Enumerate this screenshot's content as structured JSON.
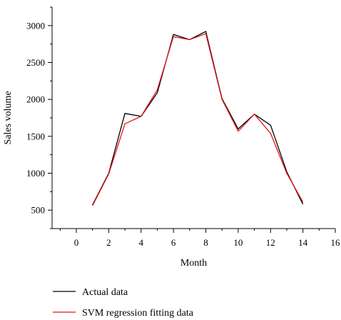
{
  "chart_data": {
    "type": "line",
    "title": "",
    "xlabel": "Month",
    "ylabel": "Sales volume",
    "xlim": [
      -1.5,
      16
    ],
    "ylim": [
      250,
      3250
    ],
    "xticks": [
      0,
      2,
      4,
      6,
      8,
      10,
      12,
      14,
      16
    ],
    "yticks": [
      500,
      1000,
      1500,
      2000,
      2500,
      3000
    ],
    "grid": false,
    "legend_position": "bottom",
    "x": [
      1,
      2,
      3,
      4,
      5,
      6,
      7,
      8,
      9,
      10,
      11,
      12,
      13,
      14
    ],
    "series": [
      {
        "name": "Actual data",
        "color": "#000000",
        "values": [
          570,
          1000,
          1810,
          1770,
          2090,
          2880,
          2810,
          2920,
          2010,
          1600,
          1800,
          1650,
          1020,
          580
        ]
      },
      {
        "name": "SVM regression fitting data",
        "color": "#e0151b",
        "values": [
          560,
          990,
          1670,
          1770,
          2130,
          2850,
          2810,
          2890,
          2000,
          1570,
          1800,
          1540,
          1000,
          610
        ]
      }
    ]
  }
}
